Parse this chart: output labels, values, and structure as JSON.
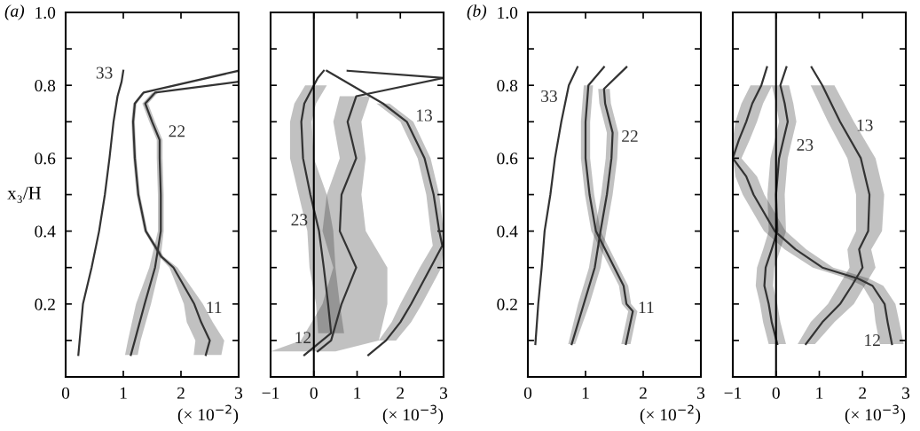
{
  "chart_data": [
    {
      "type": "line",
      "orientation": "horizontal",
      "title": "(a)",
      "xlabel": "(× 10$^{−2}$)",
      "ylabel": "x₃/H",
      "xlim": [
        0,
        3
      ],
      "ylim": [
        0,
        1
      ],
      "xticks": [
        0,
        1,
        2,
        3
      ],
      "yticks": [
        {
          "value": 0.1,
          "label": null
        },
        0.2,
        {
          "value": 0.3,
          "label": null
        },
        0.4,
        {
          "value": 0.5,
          "label": null
        },
        0.6,
        {
          "value": 0.7,
          "label": null
        },
        0.8,
        {
          "value": 0.9,
          "label": null
        },
        {
          "value": 1.0,
          "label": "1.0"
        }
      ],
      "series": [
        {
          "name": "11",
          "color": "#333333",
          "values": [
            2.43,
            2.5,
            2.35,
            2.23,
            1.87,
            1.66,
            1.39,
            1.26,
            1.2,
            1.17,
            1.2,
            1.35,
            3.0
          ],
          "x": [
            0.06,
            0.1,
            0.15,
            0.2,
            0.3,
            0.33,
            0.4,
            0.5,
            0.6,
            0.7,
            0.75,
            0.78,
            0.84
          ],
          "lower": [
            2.22,
            2.25,
            2.1,
            2.05,
            1.8,
            1.62,
            1.36,
            1.23,
            1.17,
            1.14,
            1.17,
            1.32,
            null
          ],
          "upper": [
            2.7,
            2.75,
            2.55,
            2.38,
            1.94,
            1.7,
            1.42,
            1.29,
            1.23,
            1.2,
            1.23,
            1.38,
            null
          ]
        },
        {
          "name": "22",
          "color": "#333333",
          "values": [
            1.13,
            1.2,
            1.37,
            1.55,
            1.65,
            1.65,
            1.63,
            1.63,
            1.5,
            1.38,
            1.55,
            3.0
          ],
          "x": [
            0.06,
            0.1,
            0.2,
            0.3,
            0.4,
            0.5,
            0.6,
            0.65,
            0.7,
            0.75,
            0.78,
            0.81
          ],
          "lower": [
            1.03,
            1.08,
            1.22,
            1.45,
            1.6,
            1.6,
            1.58,
            1.58,
            1.45,
            1.33,
            1.5,
            null
          ],
          "upper": [
            1.25,
            1.3,
            1.48,
            1.63,
            1.7,
            1.7,
            1.68,
            1.68,
            1.55,
            1.43,
            1.6,
            null
          ]
        },
        {
          "name": "33",
          "color": "#333333",
          "values": [
            0.22,
            0.3,
            0.45,
            0.58,
            0.68,
            0.76,
            0.83,
            0.9,
            0.97,
            1.0
          ],
          "x": [
            0.06,
            0.2,
            0.3,
            0.4,
            0.5,
            0.6,
            0.7,
            0.77,
            0.81,
            0.84
          ]
        }
      ]
    },
    {
      "type": "line",
      "orientation": "horizontal",
      "xlabel": "(× 10$^{−3}$)",
      "xlim": [
        -1,
        3
      ],
      "ylim": [
        0,
        1
      ],
      "xticks": [
        {
          "value": -1,
          "label": "−1"
        },
        0,
        1,
        2,
        3
      ],
      "tick_labels": "x",
      "yticks": [
        0.1,
        0.2,
        0.3,
        0.4,
        0.5,
        0.6,
        0.7,
        0.8,
        0.9,
        1.0
      ],
      "ref_lines": [
        {
          "axis": "x",
          "value": 0,
          "color": "#000000"
        }
      ],
      "series": [
        {
          "name": "23",
          "color": "#333333",
          "values": [
            -0.22,
            0.4,
            0.33,
            0.23,
            0.12,
            -0.08,
            -0.25,
            -0.29,
            -0.22,
            0,
            0.09,
            0.23
          ],
          "x": [
            0.06,
            0.12,
            0.2,
            0.3,
            0.4,
            0.5,
            0.6,
            0.7,
            0.75,
            0.8,
            0.82,
            0.84
          ],
          "lower": [
            null,
            0.1,
            0.05,
            -0.1,
            -0.15,
            -0.35,
            -0.55,
            -0.55,
            -0.45,
            -0.2,
            null,
            null
          ],
          "upper": [
            null,
            0.7,
            0.6,
            0.5,
            0.45,
            0.3,
            0.0,
            -0.05,
            0.05,
            0.3,
            null,
            null
          ]
        },
        {
          "name": "12",
          "color": "#333333",
          "values": [
            0.09,
            0.4,
            0.64,
            0.98,
            0.6,
            0.64,
            0.98,
            0.78,
            0.98,
            3.0
          ],
          "x": [
            0.07,
            0.1,
            0.2,
            0.3,
            0.4,
            0.5,
            0.6,
            0.7,
            0.77,
            0.82
          ],
          "lower": [
            -1.0,
            -0.3,
            0.2,
            0.45,
            0.2,
            0.3,
            0.6,
            0.45,
            0.6,
            null
          ],
          "upper": [
            0.5,
            1.5,
            1.7,
            1.7,
            1.2,
            1.1,
            1.2,
            1.1,
            1.3,
            null
          ]
        },
        {
          "name": "13",
          "color": "#333333",
          "values": [
            1.26,
            1.67,
            2.0,
            2.25,
            2.7,
            2.97,
            2.9,
            2.77,
            2.56,
            2.15,
            1.6,
            0.3
          ],
          "x": [
            0.06,
            0.1,
            0.15,
            0.2,
            0.3,
            0.36,
            0.4,
            0.5,
            0.6,
            0.7,
            0.75,
            0.84
          ],
          "lower": [
            null,
            1.5,
            1.8,
            2.0,
            2.45,
            2.75,
            2.7,
            2.6,
            2.4,
            2.0,
            1.45,
            null
          ],
          "upper": [
            null,
            1.9,
            2.25,
            2.5,
            2.95,
            3.0,
            3.0,
            2.9,
            2.7,
            2.3,
            1.75,
            null
          ]
        },
        {
          "color": "#333333",
          "values": [
            0.78,
            3.0
          ],
          "x": [
            0.84,
            0.82
          ]
        }
      ]
    },
    {
      "type": "line",
      "orientation": "horizontal",
      "title": "(b)",
      "xlabel": "(× 10$^{−2}$)",
      "xlim": [
        0,
        3
      ],
      "ylim": [
        0,
        1
      ],
      "xticks": [
        0,
        1,
        2,
        3
      ],
      "yticks": [
        {
          "value": 0.1,
          "label": null
        },
        0.2,
        {
          "value": 0.3,
          "label": null
        },
        0.4,
        {
          "value": 0.5,
          "label": null
        },
        0.6,
        {
          "value": 0.7,
          "label": null
        },
        0.8,
        {
          "value": 0.9,
          "label": null
        },
        {
          "value": 1.0,
          "label": "1.0"
        }
      ],
      "series": [
        {
          "name": "33",
          "color": "#333333",
          "values": [
            0.13,
            0.18,
            0.24,
            0.29,
            0.39,
            0.47,
            0.58,
            0.71,
            0.86
          ],
          "x": [
            0.09,
            0.2,
            0.3,
            0.4,
            0.5,
            0.6,
            0.7,
            0.8,
            0.85
          ]
        },
        {
          "name": "11",
          "color": "#333333",
          "values": [
            1.7,
            1.82,
            1.71,
            1.66,
            1.5,
            1.18,
            1.07,
            1.0,
            1.0,
            1.05,
            1.32
          ],
          "x": [
            0.09,
            0.18,
            0.2,
            0.25,
            0.3,
            0.4,
            0.5,
            0.6,
            0.7,
            0.8,
            0.85
          ],
          "lower": [
            1.62,
            1.74,
            1.63,
            1.58,
            1.42,
            1.1,
            0.99,
            0.92,
            0.92,
            0.97,
            null
          ],
          "upper": [
            1.78,
            1.9,
            1.79,
            1.74,
            1.58,
            1.26,
            1.15,
            1.08,
            1.08,
            1.13,
            null
          ]
        },
        {
          "name": "22",
          "color": "#333333",
          "values": [
            0.76,
            0.97,
            1.16,
            1.26,
            1.37,
            1.45,
            1.47,
            1.34,
            1.32,
            1.71
          ],
          "x": [
            0.09,
            0.2,
            0.3,
            0.4,
            0.5,
            0.6,
            0.67,
            0.75,
            0.79,
            0.85
          ],
          "lower": [
            0.7,
            0.87,
            1.06,
            1.16,
            1.27,
            1.35,
            1.37,
            1.24,
            1.22,
            null
          ],
          "upper": [
            0.82,
            1.07,
            1.26,
            1.36,
            1.47,
            1.55,
            1.57,
            1.44,
            1.42,
            null
          ]
        }
      ]
    },
    {
      "type": "line",
      "orientation": "horizontal",
      "xlabel": "(× 10$^{−3}$)",
      "xlim": [
        -1,
        3
      ],
      "ylim": [
        0,
        1
      ],
      "xticks": [
        {
          "value": -1,
          "label": "−1"
        },
        0,
        1,
        2,
        3
      ],
      "tick_labels": "x",
      "yticks": [
        0.1,
        0.2,
        0.3,
        0.4,
        0.5,
        0.6,
        0.7,
        0.8,
        0.9,
        1.0
      ],
      "ref_lines": [
        {
          "axis": "x",
          "value": 0,
          "color": "#000000"
        }
      ],
      "series": [
        {
          "name": "13",
          "color": "#333333",
          "values": [
            0.69,
            1.07,
            1.48,
            1.75,
            2.0,
            1.92,
            2.13,
            2.16,
            1.96,
            1.48,
            1.07,
            0.82
          ],
          "x": [
            0.09,
            0.15,
            0.2,
            0.25,
            0.3,
            0.35,
            0.4,
            0.5,
            0.6,
            0.7,
            0.8,
            0.85
          ],
          "lower": [
            0.5,
            0.8,
            1.2,
            1.45,
            1.7,
            1.65,
            1.85,
            1.85,
            1.65,
            1.2,
            0.8,
            null
          ],
          "upper": [
            0.9,
            1.35,
            1.8,
            2.05,
            2.3,
            2.2,
            2.45,
            2.5,
            2.3,
            1.8,
            1.35,
            null
          ]
        },
        {
          "name": "12",
          "color": "#333333",
          "values": [
            2.68,
            2.58,
            2.51,
            2.23,
            1.89,
            1.07,
            0.45,
            -0.03,
            -0.52,
            -0.69,
            -1.0,
            -0.86,
            -0.69,
            -0.55,
            -0.34,
            -0.21
          ],
          "x": [
            0.09,
            0.15,
            0.2,
            0.25,
            0.27,
            0.3,
            0.35,
            0.4,
            0.5,
            0.55,
            0.6,
            0.65,
            0.7,
            0.75,
            0.8,
            0.85
          ],
          "lower": [
            2.4,
            2.3,
            2.25,
            2.0,
            1.65,
            0.85,
            0.2,
            -0.28,
            -0.77,
            -0.94,
            -1.0,
            -1.0,
            -0.94,
            -0.8,
            -0.59,
            null
          ],
          "upper": [
            2.95,
            2.85,
            2.76,
            2.48,
            2.14,
            1.32,
            0.7,
            0.22,
            -0.27,
            -0.44,
            -0.8,
            -0.61,
            -0.44,
            -0.3,
            -0.09,
            null
          ]
        },
        {
          "name": "23",
          "color": "#333333",
          "values": [
            0.03,
            -0.1,
            -0.17,
            -0.27,
            -0.24,
            -0.1,
            0.03,
            0,
            0.07,
            0.17,
            0.27,
            0.2,
            0.1,
            0.24
          ],
          "x": [
            0.09,
            0.15,
            0.2,
            0.25,
            0.3,
            0.35,
            0.4,
            0.5,
            0.6,
            0.65,
            0.7,
            0.75,
            0.8,
            0.85
          ],
          "lower": [
            -0.17,
            -0.3,
            -0.37,
            -0.47,
            -0.44,
            -0.3,
            -0.17,
            -0.2,
            -0.13,
            -0.03,
            0.07,
            0.0,
            -0.1,
            null
          ],
          "upper": [
            0.23,
            0.1,
            0.03,
            -0.07,
            -0.04,
            0.1,
            0.23,
            0.2,
            0.27,
            0.37,
            0.47,
            0.4,
            0.3,
            null
          ]
        }
      ]
    }
  ]
}
